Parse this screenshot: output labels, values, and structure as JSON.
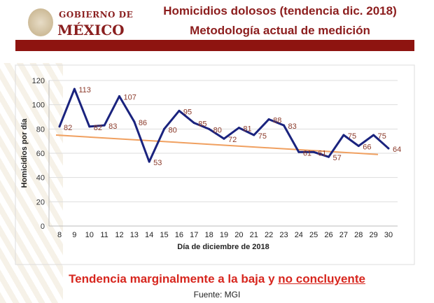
{
  "header": {
    "logo_line1": "GOBIERNO DE",
    "logo_line2": "MÉXICO",
    "title": "Homicidios dolosos (tendencia dic. 2018)",
    "subtitle": "Metodología actual de medición",
    "bar_color": "#8e1410"
  },
  "chart_data": {
    "type": "line",
    "xlabel": "Día de diciembre de 2018",
    "ylabel": "Homicidios por día",
    "ylim": [
      0,
      120
    ],
    "yticks": [
      0,
      20,
      40,
      60,
      80,
      100,
      120
    ],
    "categories": [
      "8",
      "9",
      "10",
      "11",
      "12",
      "13",
      "14",
      "15",
      "16",
      "17",
      "18",
      "19",
      "20",
      "21",
      "22",
      "23",
      "24",
      "25",
      "26",
      "27",
      "28",
      "29",
      "30"
    ],
    "series": [
      {
        "values": [
          82,
          113,
          82,
          83,
          107,
          86,
          53,
          80,
          95,
          85,
          80,
          72,
          81,
          75,
          88,
          83,
          61,
          61,
          57,
          75,
          66,
          75,
          64
        ],
        "color": "#1a237e",
        "data_labels": true
      },
      {
        "trendline": "linear",
        "start": 75,
        "end": 59,
        "color": "#f0a060"
      }
    ],
    "grid": true,
    "label_color": "#8b3a2a"
  },
  "footer": {
    "conclusion_part1": "Tendencia marginalmente a la baja y ",
    "conclusion_part2": "no concluyente",
    "source": "Fuente: MGI"
  }
}
